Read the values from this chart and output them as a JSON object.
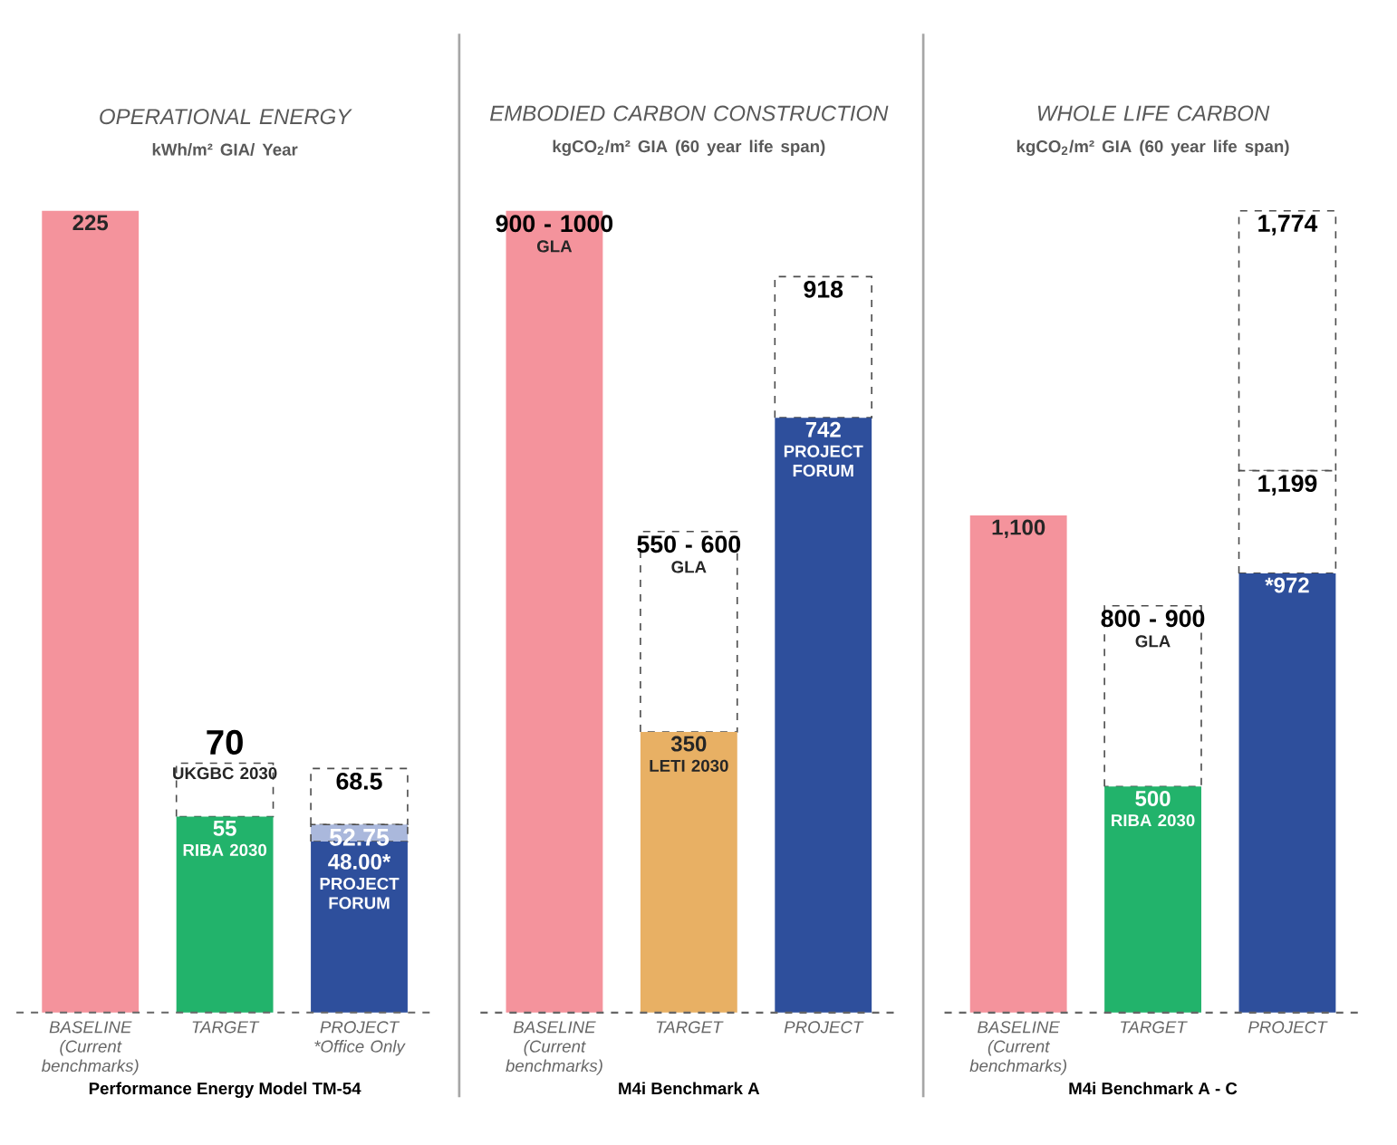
{
  "chart_data": [
    {
      "type": "bar",
      "stacked": true,
      "tick_labels": "x",
      "title": "OPERATIONAL ENERGY",
      "subtitle": "kWh/m² GIA/ Year",
      "xlabel": "Performance Energy Model TM-54",
      "categories": [
        "BASELINE (Current benchmarks)",
        "TARGET",
        "PROJECT *Office Only"
      ],
      "series": [
        {
          "colors": [
            "#f4939c",
            "#22b36b",
            "#2e4f9c"
          ],
          "values": [
            225,
            55,
            48
          ],
          "value_labels": [
            "225",
            "55",
            "48.00*"
          ]
        },
        {
          "colors": [
            "#ffffff",
            "#ffffff",
            "#aab8dc"
          ],
          "values": [
            null,
            15,
            4.75
          ],
          "line_style": "dashed"
        },
        {
          "colors": [
            "#ffffff",
            "#ffffff",
            "#ffffff"
          ],
          "values": [
            null,
            null,
            15.75
          ],
          "line_style": "dashed"
        }
      ],
      "annotations": [
        {
          "text": "70",
          "x": "TARGET",
          "y": 70
        },
        {
          "text": "UKGBC 2030",
          "x": "TARGET",
          "y": 70
        },
        {
          "text": "RIBA 2030",
          "x": "TARGET",
          "y": 55
        },
        {
          "text": "68.5",
          "x": "PROJECT *Office Only",
          "y": 68.5
        },
        {
          "text": "52.75",
          "x": "PROJECT *Office Only",
          "y": 52.75
        },
        {
          "text": "PROJECT FORUM",
          "x": "PROJECT *Office Only",
          "y": 48
        }
      ]
    },
    {
      "type": "bar",
      "stacked": true,
      "tick_labels": "x",
      "title": "EMBODIED CARBON CONSTRUCTION",
      "subtitle": "kgCO$_{2}$/m² GIA (60 year life span)",
      "xlabel": "M4i Benchmark A",
      "categories": [
        "BASELINE (Current benchmarks)",
        "TARGET",
        "PROJECT"
      ],
      "series": [
        {
          "colors": [
            "#f4939c",
            "#e8b064",
            "#2e4f9c"
          ],
          "values": [
            1000,
            350,
            742
          ],
          "value_labels": [
            null,
            "350",
            "742"
          ]
        },
        {
          "colors": [
            "#ffffff",
            "#ffffff",
            "#ffffff"
          ],
          "values": [
            null,
            250,
            176
          ],
          "line_style": "dashed"
        }
      ],
      "annotations": [
        {
          "text": "900 - 1000",
          "x": "BASELINE (Current benchmarks)",
          "y": 1000
        },
        {
          "text": "GLA",
          "x": "BASELINE (Current benchmarks)",
          "y": 1000
        },
        {
          "text": "550 - 600",
          "x": "TARGET",
          "y": 600
        },
        {
          "text": "GLA",
          "x": "TARGET",
          "y": 600
        },
        {
          "text": "LETI 2030",
          "x": "TARGET",
          "y": 350
        },
        {
          "text": "918",
          "x": "PROJECT",
          "y": 918
        },
        {
          "text": "PROJECT FORUM",
          "x": "PROJECT",
          "y": 742
        }
      ]
    },
    {
      "type": "bar",
      "stacked": true,
      "tick_labels": "x",
      "title": "WHOLE LIFE CARBON",
      "subtitle": "kgCO$_{2}$/m² GIA (60 year life span)",
      "xlabel": "M4i Benchmark A - C",
      "categories": [
        "BASELINE (Current benchmarks)",
        "TARGET",
        "PROJECT"
      ],
      "series": [
        {
          "colors": [
            "#f4939c",
            "#22b36b",
            "#2e4f9c"
          ],
          "values": [
            1100,
            500,
            972
          ],
          "value_labels": [
            "1,100",
            "500",
            "*972"
          ]
        },
        {
          "colors": [
            "#ffffff",
            "#ffffff",
            "#ffffff"
          ],
          "values": [
            null,
            400,
            227
          ],
          "line_style": "dashed"
        },
        {
          "colors": [
            "#ffffff",
            "#ffffff",
            "#ffffff"
          ],
          "values": [
            null,
            null,
            575
          ],
          "line_style": "dashed"
        }
      ],
      "annotations": [
        {
          "text": "800 - 900",
          "x": "TARGET",
          "y": 900
        },
        {
          "text": "GLA",
          "x": "TARGET",
          "y": 900
        },
        {
          "text": "RIBA 2030",
          "x": "TARGET",
          "y": 500
        },
        {
          "text": "1,774",
          "x": "PROJECT",
          "y": 1774
        },
        {
          "text": "1,199",
          "x": "PROJECT",
          "y": 1199
        }
      ]
    }
  ]
}
